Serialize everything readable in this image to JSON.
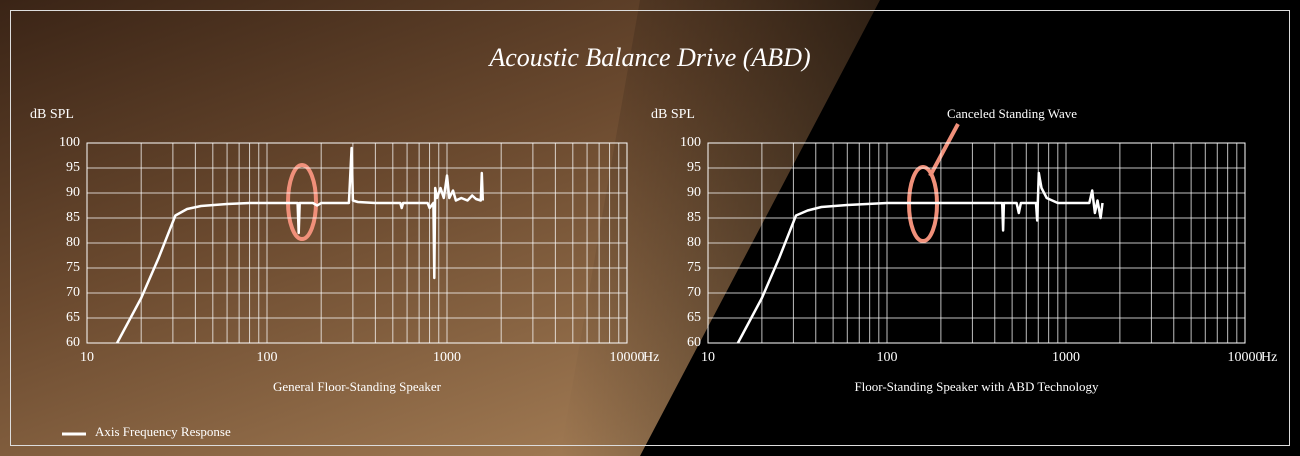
{
  "title": "Acoustic Balance Drive (ABD)",
  "chart_data": [
    {
      "type": "line",
      "subtitle": "General Floor-Standing Speaker",
      "y_label": "dB SPL",
      "x_label": "Hz",
      "x_scale": "log",
      "xlim": [
        10,
        10000
      ],
      "xticks": [
        10,
        100,
        1000,
        10000
      ],
      "ylim": [
        60,
        100
      ],
      "yticks": [
        60,
        65,
        70,
        75,
        80,
        85,
        90,
        95,
        100
      ],
      "grid": true,
      "x": [
        14.7,
        20,
        25,
        31,
        36,
        43,
        60,
        80,
        120,
        148,
        150,
        152,
        180,
        190,
        200,
        250,
        285,
        295,
        300,
        320,
        400,
        550,
        560,
        570,
        780,
        800,
        840,
        850,
        860,
        880,
        920,
        960,
        1000,
        1030,
        1080,
        1120,
        1200,
        1300,
        1380,
        1450,
        1540,
        1560,
        1580
      ],
      "series": [
        {
          "name": "Axis Frequency Response",
          "color": "#ffffff",
          "values": [
            60,
            69,
            77,
            85.5,
            86.8,
            87.4,
            87.8,
            88,
            88,
            88,
            82,
            88,
            88,
            87.5,
            88,
            88,
            88,
            99,
            88.5,
            88.2,
            88,
            88,
            87,
            88,
            88,
            87,
            88,
            73,
            91,
            89,
            91,
            89,
            93.5,
            89,
            90.5,
            88.5,
            89,
            88.5,
            89.5,
            88.8,
            88.5,
            94,
            88.5
          ]
        }
      ]
    },
    {
      "type": "line",
      "subtitle": "Floor-Standing Speaker with ABD Technology",
      "y_label": "dB SPL",
      "x_label": "Hz",
      "annotation": "Canceled Standing Wave",
      "x_scale": "log",
      "xlim": [
        10,
        10000
      ],
      "xticks": [
        10,
        100,
        1000,
        10000
      ],
      "ylim": [
        60,
        100
      ],
      "yticks": [
        60,
        65,
        70,
        75,
        80,
        85,
        90,
        95,
        100
      ],
      "grid": true,
      "x": [
        14.7,
        20,
        25,
        31,
        36,
        43,
        60,
        100,
        200,
        300,
        440,
        445,
        450,
        530,
        545,
        560,
        680,
        690,
        705,
        730,
        780,
        900,
        1350,
        1400,
        1450,
        1500,
        1560,
        1600
      ],
      "series": [
        {
          "color": "#ffffff",
          "values": [
            60,
            69,
            77,
            85.5,
            86.5,
            87.2,
            87.6,
            88,
            88,
            88,
            88,
            82.5,
            88,
            88,
            86,
            88,
            88,
            84.5,
            94,
            91,
            89,
            88,
            88,
            90.5,
            86,
            88.5,
            85,
            88
          ]
        }
      ]
    }
  ]
}
